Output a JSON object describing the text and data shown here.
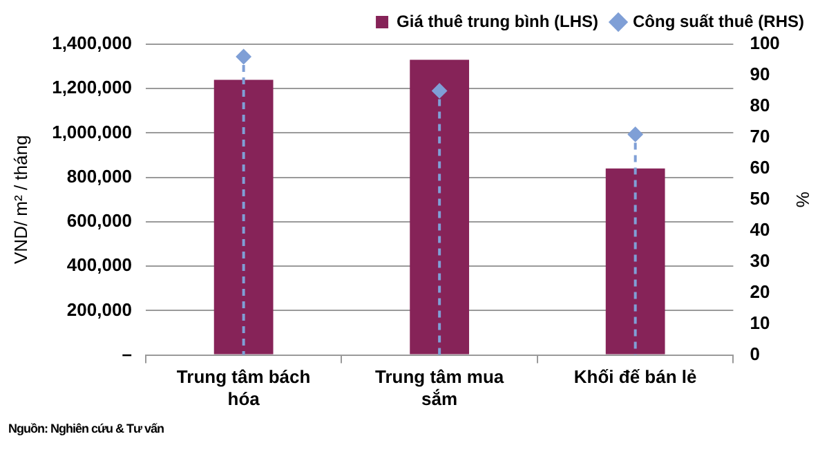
{
  "chart_data": {
    "type": "bar",
    "ylabel": "VND/ m² / tháng",
    "y2label": "%",
    "categories": [
      [
        "Trung tâm bách",
        "hóa"
      ],
      [
        "Trung tâm mua",
        "sắm"
      ],
      "Khối đế bán lẻ"
    ],
    "series": [
      {
        "name": "Giá thuê trung bình (LHS)",
        "color": "#862358",
        "values": [
          1240000,
          1330000,
          840000
        ]
      },
      {
        "name": "Công suất thuê (RHS)",
        "type": "scatter",
        "axis": "y2",
        "marker": "diamond",
        "line_style": "dashed",
        "color": "#7f9fd6",
        "values": [
          96,
          85,
          71
        ]
      }
    ],
    "ylim": [
      0,
      1400000
    ],
    "yticks": [
      {
        "value": 0,
        "label": "–"
      },
      {
        "value": 200000,
        "label": "200,000"
      },
      {
        "value": 400000,
        "label": "400,000"
      },
      {
        "value": 600000,
        "label": "600,000"
      },
      {
        "value": 800000,
        "label": "800,000"
      },
      {
        "value": 1000000,
        "label": "1,000,000"
      },
      {
        "value": 1200000,
        "label": "1,200,000"
      },
      {
        "value": 1400000,
        "label": "1,400,000"
      }
    ],
    "y2lim": [
      0,
      100
    ],
    "y2ticks": [
      0,
      10,
      20,
      30,
      40,
      50,
      60,
      70,
      80,
      90,
      100
    ],
    "grid": "y",
    "legend": "top right",
    "annotations": [
      "Nguồn: Nghiên cứu & Tư vấn"
    ]
  }
}
